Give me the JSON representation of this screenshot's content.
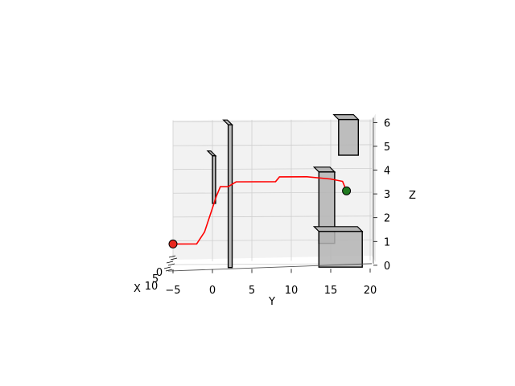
{
  "chart_data": {
    "type": "3d-path",
    "axes": {
      "x": {
        "label": "X",
        "ticks": [
          "0",
          "5",
          "10"
        ],
        "range": [
          0,
          10
        ]
      },
      "y": {
        "label": "Y",
        "ticks": [
          "−5",
          "0",
          "5",
          "10",
          "15",
          "20"
        ],
        "range": [
          -5,
          20
        ]
      },
      "z": {
        "label": "Z",
        "ticks": [
          "0",
          "1",
          "2",
          "3",
          "4",
          "5",
          "6"
        ],
        "range": [
          0,
          6
        ]
      }
    },
    "grid": true,
    "colors": {
      "path": "#ff0000",
      "start": "#e8281e",
      "goal": "#1f7a1f",
      "obstacle": "#b4b4b4",
      "edge": "#000000",
      "grid": "#cfcfcf",
      "pane": "#f2f2f2"
    },
    "path": [
      {
        "y": -5.0,
        "z": 1.0
      },
      {
        "y": -2.0,
        "z": 1.0
      },
      {
        "y": -1.0,
        "z": 1.5
      },
      {
        "y": 0.5,
        "z": 3.0
      },
      {
        "y": 1.0,
        "z": 3.4
      },
      {
        "y": 2.0,
        "z": 3.4
      },
      {
        "y": 3.0,
        "z": 3.6
      },
      {
        "y": 8.0,
        "z": 3.6
      },
      {
        "y": 8.5,
        "z": 3.8
      },
      {
        "y": 12.0,
        "z": 3.8
      },
      {
        "y": 15.0,
        "z": 3.7
      },
      {
        "y": 16.5,
        "z": 3.6
      },
      {
        "y": 17.0,
        "z": 3.2
      }
    ],
    "start": {
      "y": -5.0,
      "z": 1.0
    },
    "goal": {
      "y": 17.0,
      "z": 3.2
    },
    "obstacles": [
      {
        "name": "thin-panel-a",
        "y": [
          0.0,
          0.4
        ],
        "z": [
          2.7,
          4.7
        ]
      },
      {
        "name": "thin-pillar-b",
        "y": [
          2.0,
          2.5
        ],
        "z": [
          0.0,
          6.0
        ]
      },
      {
        "name": "tall-box",
        "y": [
          13.5,
          15.5
        ],
        "z": [
          1.0,
          4.0
        ]
      },
      {
        "name": "floor-box",
        "y": [
          13.5,
          19.0
        ],
        "z": [
          0.0,
          1.5
        ]
      },
      {
        "name": "high-box",
        "y": [
          16.0,
          18.5
        ],
        "z": [
          4.7,
          6.2
        ]
      }
    ]
  }
}
